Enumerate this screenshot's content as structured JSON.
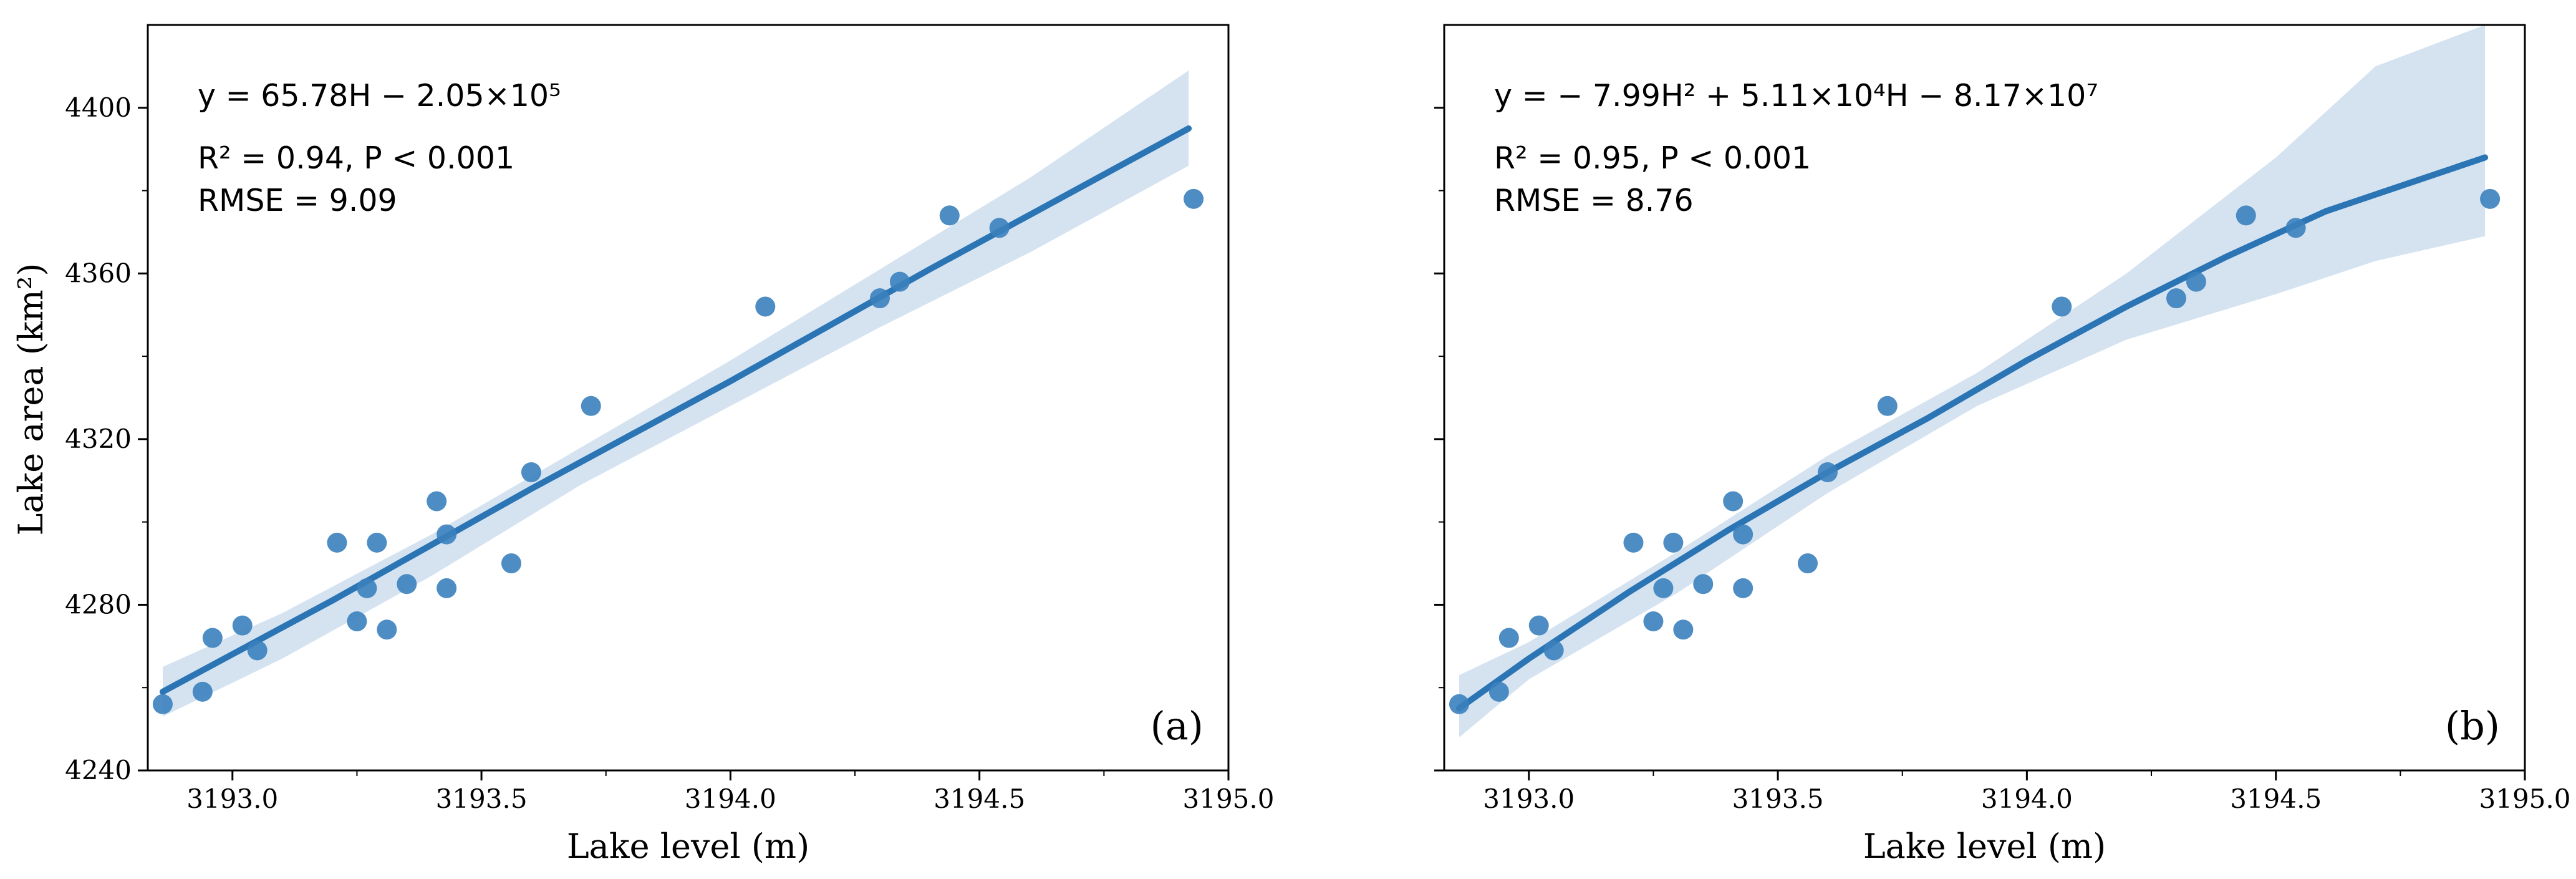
{
  "chart_data": [
    {
      "type": "scatter",
      "panel_label": "(a)",
      "fit": "linear",
      "xlabel": "Lake level (m)",
      "ylabel": "Lake area (km²)",
      "xlim": [
        3192.83,
        3195.0
      ],
      "ylim": [
        4240,
        4420
      ],
      "xticks": [
        3193.0,
        3193.5,
        3194.0,
        3194.5,
        3195.0
      ],
      "xtick_labels": [
        "3193.0",
        "3193.5",
        "3194.0",
        "3194.5",
        "3195.0"
      ],
      "yticks": [
        4240,
        4280,
        4320,
        4360,
        4400
      ],
      "ytick_labels": [
        "4240",
        "4280",
        "4320",
        "4360",
        "4400"
      ],
      "annotations": {
        "equation": "y = 65.78H − 2.05×10⁵",
        "r2_p": "R² = 0.94, P < 0.001",
        "rmse": "RMSE = 9.09"
      },
      "points": [
        {
          "x": 3192.86,
          "y": 4256
        },
        {
          "x": 3192.94,
          "y": 4259
        },
        {
          "x": 3192.96,
          "y": 4272
        },
        {
          "x": 3193.02,
          "y": 4275
        },
        {
          "x": 3193.05,
          "y": 4269
        },
        {
          "x": 3193.21,
          "y": 4295
        },
        {
          "x": 3193.25,
          "y": 4276
        },
        {
          "x": 3193.27,
          "y": 4284
        },
        {
          "x": 3193.29,
          "y": 4295
        },
        {
          "x": 3193.31,
          "y": 4274
        },
        {
          "x": 3193.35,
          "y": 4285
        },
        {
          "x": 3193.41,
          "y": 4305
        },
        {
          "x": 3193.43,
          "y": 4297
        },
        {
          "x": 3193.43,
          "y": 4284
        },
        {
          "x": 3193.56,
          "y": 4290
        },
        {
          "x": 3193.6,
          "y": 4312
        },
        {
          "x": 3193.72,
          "y": 4328
        },
        {
          "x": 3194.07,
          "y": 4352
        },
        {
          "x": 3194.3,
          "y": 4354
        },
        {
          "x": 3194.34,
          "y": 4358
        },
        {
          "x": 3194.44,
          "y": 4374
        },
        {
          "x": 3194.54,
          "y": 4371
        },
        {
          "x": 3194.93,
          "y": 4378
        }
      ],
      "fit_line": {
        "x": [
          3192.86,
          3193.2,
          3193.6,
          3194.0,
          3194.4,
          3194.92
        ],
        "y": [
          4259,
          4281,
          4308,
          4334,
          4361,
          4395
        ]
      },
      "confidence_band": {
        "x": [
          3192.86,
          3193.1,
          3193.4,
          3193.7,
          3194.0,
          3194.3,
          3194.6,
          3194.92
        ],
        "upper": [
          4265,
          4278,
          4297,
          4318,
          4339,
          4361,
          4383,
          4409
        ],
        "lower": [
          4253,
          4267,
          4287,
          4309,
          4328,
          4347,
          4365,
          4386
        ]
      }
    },
    {
      "type": "scatter",
      "panel_label": "(b)",
      "fit": "quadratic",
      "xlabel": "Lake level (m)",
      "ylabel": "",
      "xlim": [
        3192.83,
        3195.0
      ],
      "ylim": [
        4240,
        4420
      ],
      "xticks": [
        3193.0,
        3193.5,
        3194.0,
        3194.5,
        3195.0
      ],
      "xtick_labels": [
        "3193.0",
        "3193.5",
        "3194.0",
        "3194.5",
        "3195.0"
      ],
      "yticks": [
        4240,
        4280,
        4320,
        4360,
        4400
      ],
      "ytick_labels": [],
      "annotations": {
        "equation": "y = − 7.99H² + 5.11×10⁴H − 8.17×10⁷",
        "r2_p": "R² = 0.95, P < 0.001",
        "rmse": "RMSE = 8.76"
      },
      "points": [
        {
          "x": 3192.86,
          "y": 4256
        },
        {
          "x": 3192.94,
          "y": 4259
        },
        {
          "x": 3192.96,
          "y": 4272
        },
        {
          "x": 3193.02,
          "y": 4275
        },
        {
          "x": 3193.05,
          "y": 4269
        },
        {
          "x": 3193.21,
          "y": 4295
        },
        {
          "x": 3193.25,
          "y": 4276
        },
        {
          "x": 3193.27,
          "y": 4284
        },
        {
          "x": 3193.29,
          "y": 4295
        },
        {
          "x": 3193.31,
          "y": 4274
        },
        {
          "x": 3193.35,
          "y": 4285
        },
        {
          "x": 3193.41,
          "y": 4305
        },
        {
          "x": 3193.43,
          "y": 4297
        },
        {
          "x": 3193.43,
          "y": 4284
        },
        {
          "x": 3193.56,
          "y": 4290
        },
        {
          "x": 3193.6,
          "y": 4312
        },
        {
          "x": 3193.72,
          "y": 4328
        },
        {
          "x": 3194.07,
          "y": 4352
        },
        {
          "x": 3194.3,
          "y": 4354
        },
        {
          "x": 3194.34,
          "y": 4358
        },
        {
          "x": 3194.44,
          "y": 4374
        },
        {
          "x": 3194.54,
          "y": 4371
        },
        {
          "x": 3194.93,
          "y": 4378
        }
      ],
      "fit_line": {
        "x": [
          3192.86,
          3193.0,
          3193.2,
          3193.4,
          3193.6,
          3193.8,
          3194.0,
          3194.2,
          3194.4,
          3194.6,
          3194.92
        ],
        "y": [
          4255,
          4267,
          4283,
          4298,
          4312,
          4325,
          4339,
          4352,
          4364,
          4375,
          4388
        ]
      },
      "confidence_band": {
        "x": [
          3192.86,
          3193.0,
          3193.3,
          3193.6,
          3193.9,
          3194.2,
          3194.5,
          3194.7,
          3194.92
        ],
        "upper": [
          4263,
          4271,
          4293,
          4316,
          4336,
          4360,
          4388,
          4410,
          4420
        ],
        "lower": [
          4248,
          4262,
          4283,
          4307,
          4328,
          4344,
          4355,
          4363,
          4369
        ]
      }
    }
  ],
  "colors": {
    "marker": "#3a81bd",
    "line": "#2b75b5",
    "band": "#d5e3f1",
    "axis": "#000000"
  }
}
